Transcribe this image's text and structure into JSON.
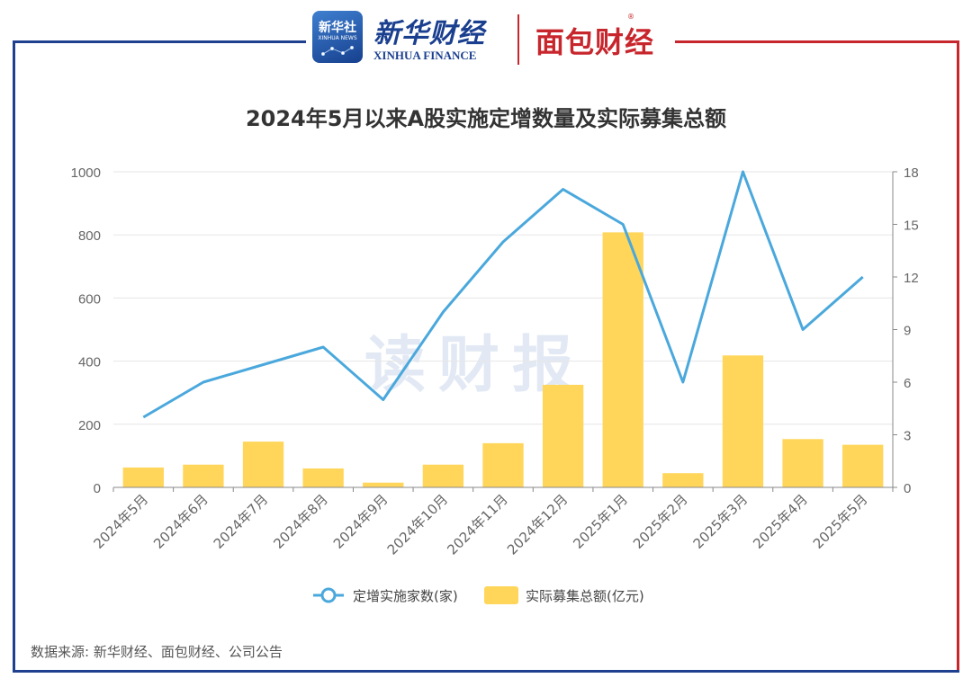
{
  "header": {
    "xinhua_badge_cn": "新华社",
    "xinhua_badge_en": "XINHUA NEWS",
    "brand_cn": "新华财经",
    "brand_en": "XINHUA FINANCE",
    "partner": "面包财经",
    "partner_mark": "®"
  },
  "watermark": "读财报",
  "source": "数据来源: 新华财经、面包财经、公司公告",
  "colors": {
    "line": "#4aa8dc",
    "bar": "#ffd65a",
    "frame_left": "#1f3f8f",
    "frame_right": "#c8262d"
  },
  "chart_data": {
    "type": "bar",
    "title": "2024年5月以来A股实施定增数量及实际募集总额",
    "categories": [
      "2024年5月",
      "2024年6月",
      "2024年7月",
      "2024年8月",
      "2024年9月",
      "2024年10月",
      "2024年11月",
      "2024年12月",
      "2025年1月",
      "2025年2月",
      "2025年3月",
      "2025年4月",
      "2025年5月"
    ],
    "series": [
      {
        "name": "实际募集总额(亿元)",
        "type": "bar",
        "axis": "left",
        "values": [
          63,
          72,
          145,
          60,
          15,
          72,
          140,
          325,
          808,
          45,
          418,
          153,
          135
        ]
      },
      {
        "name": "定增实施家数(家)",
        "type": "line",
        "axis": "right",
        "values": [
          4,
          6,
          7,
          8,
          5,
          10,
          14,
          17,
          15,
          6,
          18,
          9,
          12
        ]
      }
    ],
    "left_axis": {
      "min": 0,
      "max": 1000,
      "ticks": [
        0,
        200,
        400,
        600,
        800,
        1000
      ]
    },
    "right_axis": {
      "min": 0,
      "max": 18,
      "ticks": [
        0,
        3,
        6,
        9,
        12,
        15,
        18
      ]
    },
    "legend_position": "bottom",
    "grid": true
  }
}
